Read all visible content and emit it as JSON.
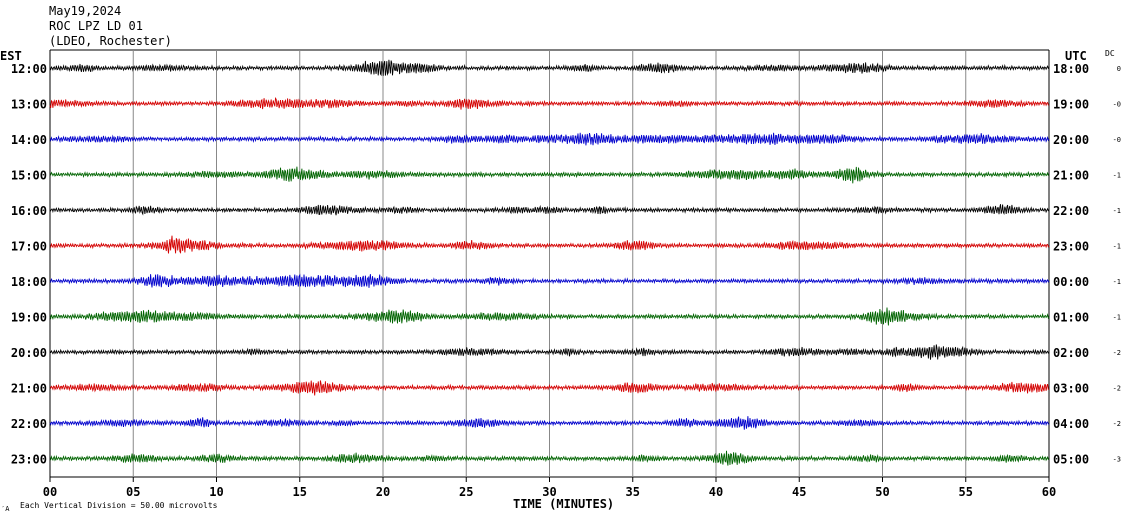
{
  "header": {
    "date": "May19,2024",
    "station": "ROC LPZ LD 01",
    "network": "(LDEO, Rochester)",
    "left_tz": "EST",
    "right_tz": "UTC",
    "dc_label": "DC"
  },
  "footer": {
    "scale_note": "Each Vertical Division =   50.00 microvolts",
    "corner_mark": "′A"
  },
  "chart_data": {
    "type": "line",
    "title": "",
    "xlabel": "TIME (MINUTES)",
    "ylabel": "",
    "xlim": [
      0,
      60
    ],
    "x_ticks": [
      "00",
      "05",
      "10",
      "15",
      "20",
      "25",
      "30",
      "35",
      "40",
      "45",
      "50",
      "55",
      "60"
    ],
    "grid": "vertical lines every 5 minutes",
    "trace_colors": [
      "#000000",
      "#d40000",
      "#0000cc",
      "#006400"
    ],
    "rows": [
      {
        "est": "12:00",
        "utc": "18:00",
        "dc": "0"
      },
      {
        "est": "13:00",
        "utc": "19:00",
        "dc": "-0"
      },
      {
        "est": "14:00",
        "utc": "20:00",
        "dc": "-0"
      },
      {
        "est": "15:00",
        "utc": "21:00",
        "dc": "-1"
      },
      {
        "est": "16:00",
        "utc": "22:00",
        "dc": "-1"
      },
      {
        "est": "17:00",
        "utc": "23:00",
        "dc": "-1"
      },
      {
        "est": "18:00",
        "utc": "00:00",
        "dc": "-1"
      },
      {
        "est": "19:00",
        "utc": "01:00",
        "dc": "-1"
      },
      {
        "est": "20:00",
        "utc": "02:00",
        "dc": "-2"
      },
      {
        "est": "21:00",
        "utc": "03:00",
        "dc": "-2"
      },
      {
        "est": "22:00",
        "utc": "04:00",
        "dc": "-2"
      },
      {
        "est": "23:00",
        "utc": "05:00",
        "dc": "-3"
      }
    ]
  }
}
